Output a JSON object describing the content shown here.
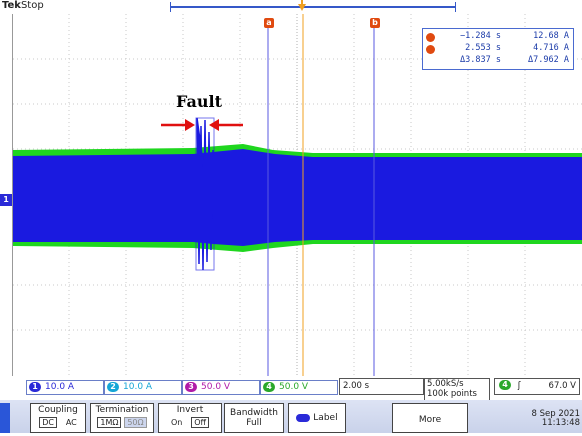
{
  "header": {
    "brand": "Tek",
    "state": "Stop"
  },
  "fault": {
    "label": "Fault"
  },
  "channel_marker": "1",
  "cursors": {
    "a_tag": "a",
    "b_tag": "b",
    "readout": {
      "row_a": {
        "tag": "a",
        "time": "−1.284 s",
        "value": "12.68 A"
      },
      "row_b": {
        "tag": "b",
        "time": "2.553 s",
        "value": "4.716 A"
      },
      "row_delta": {
        "time": "Δ3.837 s",
        "value": "Δ7.962 A"
      }
    }
  },
  "status": {
    "ch1": {
      "num": "1",
      "scale": "10.0 A",
      "color": "#2a2ad8"
    },
    "ch2": {
      "num": "2",
      "scale": "10.0 A",
      "color": "#16a6d6"
    },
    "ch3": {
      "num": "3",
      "scale": "50.0 V",
      "color": "#b01aa8"
    },
    "ch4": {
      "num": "4",
      "scale": "50.0 V",
      "color": "#2aa82a"
    },
    "timebase": "2.00 s",
    "rate": "5.00kS/s",
    "points": "100k points",
    "trigger": {
      "num": "4",
      "slope": "ʃ",
      "level": "67.0 V",
      "color": "#2aa82a"
    }
  },
  "menu": {
    "coupling": {
      "title": "Coupling",
      "opt1": "DC",
      "opt2": "AC"
    },
    "termination": {
      "title": "Termination",
      "opt1": "1MΩ",
      "opt2": "50Ω"
    },
    "invert": {
      "title": "Invert",
      "opt1": "On",
      "opt2": "Off"
    },
    "bandwidth": {
      "title": "Bandwidth",
      "value": "Full"
    },
    "label": "Label",
    "more": "More",
    "date": "8 Sep  2021",
    "time": "11:13:48"
  },
  "colors": {
    "ch1": "#1a1ae0",
    "ch4": "#1fd61f",
    "cursor": "#5a5ae0",
    "accent": "#e04a10"
  }
}
